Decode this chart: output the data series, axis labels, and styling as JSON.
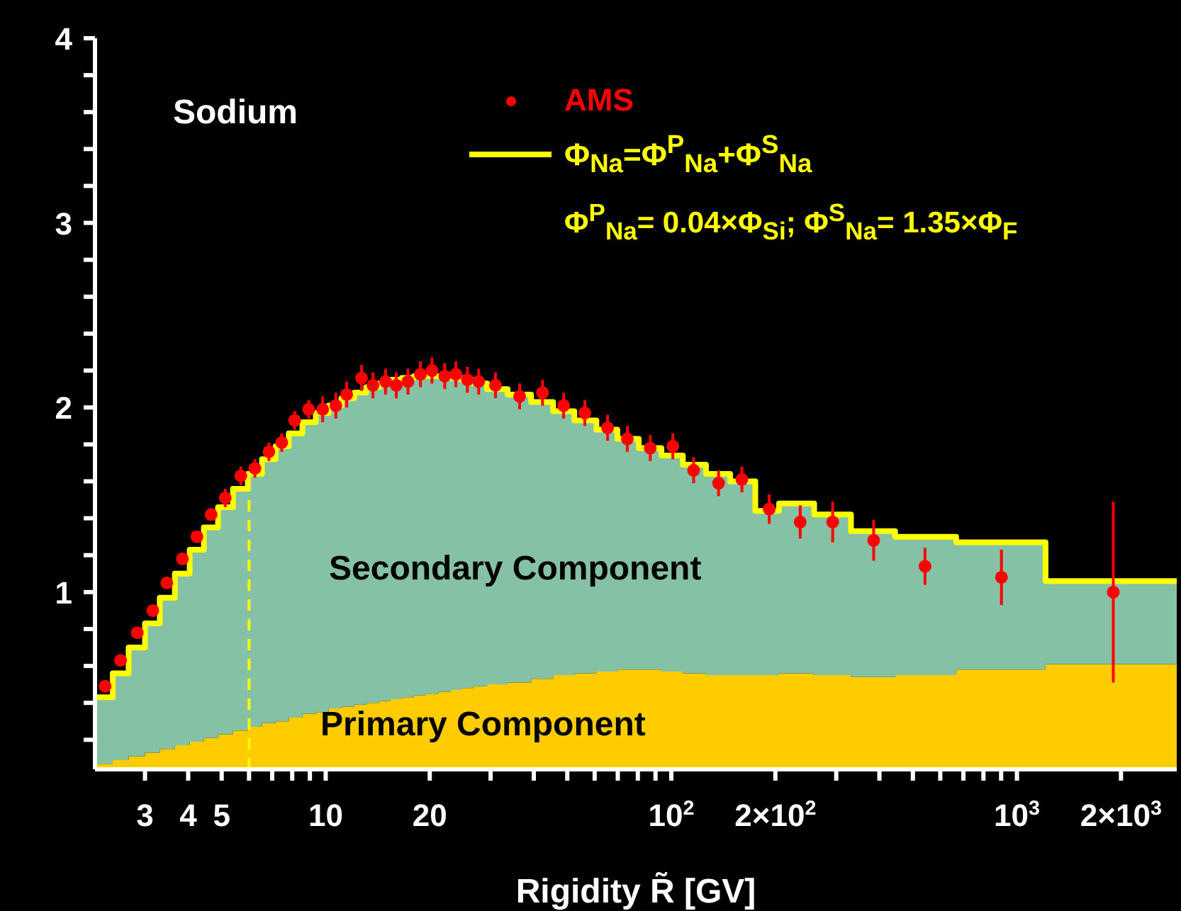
{
  "chart_data": {
    "type": "area",
    "stacked": true,
    "legend": "top",
    "xlabel": "Rigidity  R̃ [GV]",
    "log": "x",
    "xlim": [
      2.15,
      2900
    ],
    "ylim": [
      0.04,
      4
    ],
    "xticks": [
      3,
      4,
      5,
      {
        "value": 6,
        "label": null
      },
      {
        "value": 7,
        "label": null
      },
      {
        "value": 8,
        "label": null
      },
      {
        "value": 9,
        "label": null
      },
      10,
      20,
      {
        "value": 30,
        "label": null
      },
      {
        "value": 40,
        "label": null
      },
      {
        "value": 50,
        "label": null
      },
      {
        "value": 60,
        "label": null
      },
      {
        "value": 70,
        "label": null
      },
      {
        "value": 80,
        "label": null
      },
      {
        "value": 90,
        "label": null
      },
      {
        "value": 100,
        "label": "10$^{2}$"
      },
      {
        "value": 200,
        "label": "2×10$^{2}$"
      },
      {
        "value": 300,
        "label": null
      },
      {
        "value": 400,
        "label": null
      },
      {
        "value": 500,
        "label": null
      },
      {
        "value": 600,
        "label": null
      },
      {
        "value": 700,
        "label": null
      },
      {
        "value": 800,
        "label": null
      },
      {
        "value": 900,
        "label": null
      },
      {
        "value": 1000,
        "label": "10$^{3}$"
      },
      {
        "value": 2000,
        "label": "2×10$^{3}$"
      }
    ],
    "yticks": [
      {
        "value": 0.2,
        "label": null
      },
      {
        "value": 0.4,
        "label": null
      },
      {
        "value": 0.6,
        "label": null
      },
      {
        "value": 0.8,
        "label": null
      },
      1,
      {
        "value": 1.2,
        "label": null
      },
      {
        "value": 1.4,
        "label": null
      },
      {
        "value": 1.6,
        "label": null
      },
      {
        "value": 1.8,
        "label": null
      },
      2,
      {
        "value": 2.2,
        "label": null
      },
      {
        "value": 2.4,
        "label": null
      },
      {
        "value": 2.6,
        "label": null
      },
      {
        "value": 2.8,
        "label": null
      },
      3,
      {
        "value": 3.2,
        "label": null
      },
      {
        "value": 3.4,
        "label": null
      },
      {
        "value": 3.6,
        "label": null
      },
      {
        "value": 3.8,
        "label": null
      },
      4
    ],
    "annotations": [
      "Sodium",
      "Φ$^{P}$$_{Na}$= 0.04×Φ$_{Si}$;  Φ$^{S}$$_{Na}$= 1.35×Φ$_{F}$",
      "Secondary Component",
      "Primary Component"
    ],
    "ref_lines": [
      {
        "axis": "x",
        "value": 6,
        "color": "#ffff00",
        "line_style": "dashed"
      }
    ],
    "series": [
      {
        "color": "#ffcc00",
        "x": [
          2.15,
          2.42,
          2.69,
          3.0,
          3.31,
          3.66,
          4.04,
          4.44,
          4.88,
          5.39,
          5.95,
          6.54,
          7.16,
          7.82,
          8.56,
          9.36,
          10.2,
          11.1,
          12.1,
          13.1,
          14.3,
          15.4,
          16.6,
          18.0,
          19.5,
          21.2,
          23.0,
          24.7,
          26.7,
          29.3,
          33.6,
          39.3,
          45.5,
          52.4,
          60.7,
          69.8,
          80.5,
          93.6,
          108,
          126,
          148,
          175,
          205,
          259,
          331,
          444,
          667,
          1210,
          2900
        ],
        "values": [
          0.07,
          0.09,
          0.11,
          0.13,
          0.15,
          0.17,
          0.19,
          0.21,
          0.23,
          0.25,
          0.27,
          0.29,
          0.3,
          0.32,
          0.34,
          0.35,
          0.37,
          0.38,
          0.39,
          0.4,
          0.41,
          0.42,
          0.43,
          0.44,
          0.45,
          0.46,
          0.47,
          0.48,
          0.49,
          0.5,
          0.51,
          0.53,
          0.55,
          0.56,
          0.57,
          0.58,
          0.58,
          0.57,
          0.56,
          0.55,
          0.55,
          0.55,
          0.56,
          0.55,
          0.54,
          0.55,
          0.58,
          0.61,
          0.61
        ]
      },
      {
        "color": "#85c1a5",
        "x": [
          2.15,
          2.42,
          2.69,
          3.0,
          3.31,
          3.66,
          4.04,
          4.44,
          4.88,
          5.39,
          5.95,
          6.54,
          7.16,
          7.82,
          8.56,
          9.36,
          10.2,
          11.1,
          12.1,
          13.1,
          14.3,
          15.4,
          16.6,
          18.0,
          19.5,
          21.2,
          23.0,
          24.7,
          26.7,
          29.3,
          33.6,
          39.3,
          45.5,
          52.4,
          60.7,
          69.8,
          80.5,
          93.6,
          108,
          126,
          148,
          175,
          205,
          259,
          331,
          444,
          667,
          1210,
          2900
        ],
        "values": [
          0.36,
          0.47,
          0.59,
          0.7,
          0.82,
          0.93,
          1.04,
          1.14,
          1.23,
          1.31,
          1.37,
          1.43,
          1.49,
          1.54,
          1.58,
          1.62,
          1.64,
          1.67,
          1.69,
          1.71,
          1.72,
          1.73,
          1.73,
          1.73,
          1.72,
          1.71,
          1.69,
          1.67,
          1.64,
          1.6,
          1.56,
          1.5,
          1.43,
          1.37,
          1.31,
          1.25,
          1.2,
          1.17,
          1.13,
          1.09,
          1.05,
          0.89,
          0.92,
          0.87,
          0.79,
          0.75,
          0.69,
          0.45,
          0.45
        ]
      },
      {
        "name": "Φ$_{Na}$=Φ$^{P}$$_{Na}$+Φ$^{S}$$_{Na}$",
        "type": "step",
        "color": "#ffff00",
        "x": [
          2.15,
          2.42,
          2.69,
          3.0,
          3.31,
          3.66,
          4.04,
          4.44,
          4.88,
          5.39,
          5.95,
          6.54,
          7.16,
          7.82,
          8.56,
          9.36,
          10.2,
          11.1,
          12.1,
          13.1,
          14.3,
          15.4,
          16.6,
          18.0,
          19.5,
          21.2,
          23.0,
          24.7,
          26.7,
          29.3,
          33.6,
          39.3,
          45.5,
          52.4,
          60.7,
          69.8,
          80.5,
          93.6,
          108,
          126,
          148,
          175,
          205,
          259,
          331,
          444,
          667,
          1210,
          2900
        ],
        "values": [
          0.43,
          0.56,
          0.7,
          0.83,
          0.97,
          1.1,
          1.23,
          1.35,
          1.46,
          1.56,
          1.64,
          1.72,
          1.79,
          1.86,
          1.92,
          1.97,
          2.01,
          2.05,
          2.08,
          2.11,
          2.13,
          2.15,
          2.16,
          2.17,
          2.17,
          2.17,
          2.16,
          2.15,
          2.13,
          2.1,
          2.07,
          2.03,
          1.98,
          1.93,
          1.88,
          1.83,
          1.78,
          1.74,
          1.69,
          1.64,
          1.6,
          1.44,
          1.48,
          1.42,
          1.33,
          1.3,
          1.27,
          1.06,
          1.06
        ]
      },
      {
        "name": "AMS",
        "type": "scatter",
        "color": "#ff0000",
        "x": [
          2.3,
          2.55,
          2.85,
          3.16,
          3.47,
          3.85,
          4.24,
          4.66,
          5.12,
          5.68,
          6.24,
          6.85,
          7.46,
          8.13,
          8.93,
          9.8,
          10.7,
          11.5,
          12.7,
          13.7,
          14.9,
          16.0,
          17.3,
          18.8,
          20.3,
          22.1,
          23.8,
          25.7,
          27.7,
          31.0,
          36.4,
          42.4,
          48.8,
          56.2,
          65.4,
          74.6,
          86.9,
          101,
          116,
          137,
          160,
          192,
          236,
          293,
          385,
          542,
          902,
          1900
        ],
        "values": [
          0.49,
          0.63,
          0.78,
          0.9,
          1.05,
          1.18,
          1.3,
          1.42,
          1.51,
          1.63,
          1.67,
          1.76,
          1.81,
          1.93,
          1.99,
          1.99,
          2.01,
          2.07,
          2.16,
          2.12,
          2.14,
          2.12,
          2.14,
          2.18,
          2.2,
          2.17,
          2.18,
          2.15,
          2.14,
          2.12,
          2.06,
          2.08,
          2.01,
          1.97,
          1.89,
          1.83,
          1.78,
          1.79,
          1.66,
          1.59,
          1.61,
          1.45,
          1.38,
          1.38,
          1.28,
          1.14,
          1.08,
          1.0
        ],
        "errors": [
          0.03,
          0.03,
          0.03,
          0.03,
          0.03,
          0.03,
          0.03,
          0.03,
          0.05,
          0.05,
          0.05,
          0.05,
          0.05,
          0.05,
          0.05,
          0.07,
          0.07,
          0.07,
          0.07,
          0.07,
          0.07,
          0.07,
          0.07,
          0.07,
          0.07,
          0.07,
          0.07,
          0.07,
          0.07,
          0.07,
          0.07,
          0.07,
          0.07,
          0.07,
          0.07,
          0.07,
          0.07,
          0.07,
          0.07,
          0.07,
          0.07,
          0.08,
          0.09,
          0.11,
          0.11,
          0.1,
          0.15,
          0.49
        ]
      }
    ]
  }
}
